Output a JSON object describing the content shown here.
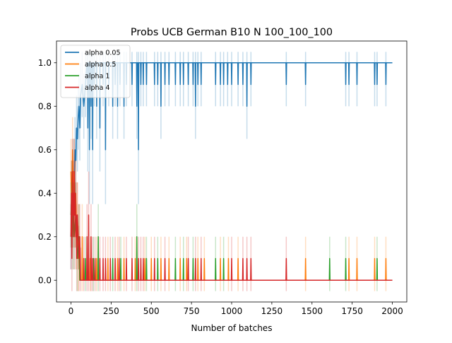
{
  "chart_data": {
    "type": "line",
    "title": "Probs UCB German B10 N 100_100_100",
    "xlabel": "Number of batches",
    "ylabel": "",
    "xlim": [
      -90,
      2090
    ],
    "ylim": [
      -0.1,
      1.1
    ],
    "xticks": [
      0,
      250,
      500,
      750,
      1000,
      1250,
      1500,
      1750,
      2000
    ],
    "xtick_labels": [
      "0",
      "250",
      "500",
      "750",
      "1000",
      "1250",
      "1500",
      "1750",
      "2000"
    ],
    "yticks": [
      0.0,
      0.2,
      0.4,
      0.6,
      0.8,
      1.0
    ],
    "ytick_labels": [
      "0.0",
      "0.2",
      "0.4",
      "0.6",
      "0.8",
      "1.0"
    ],
    "grid": false,
    "legend_position": "upper-left",
    "series": [
      {
        "name": "alpha 0.05",
        "color": "#1f77b4",
        "baseline": 1.0,
        "early_values": [
          {
            "x": 0,
            "y": 0.2
          },
          {
            "x": 5,
            "y": 0.3
          },
          {
            "x": 10,
            "y": 0.4
          },
          {
            "x": 15,
            "y": 0.5
          },
          {
            "x": 20,
            "y": 0.45
          },
          {
            "x": 25,
            "y": 0.6
          },
          {
            "x": 30,
            "y": 0.55
          },
          {
            "x": 35,
            "y": 0.7
          },
          {
            "x": 40,
            "y": 0.65
          },
          {
            "x": 45,
            "y": 0.75
          },
          {
            "x": 50,
            "y": 0.8
          },
          {
            "x": 55,
            "y": 0.7
          },
          {
            "x": 60,
            "y": 0.85
          },
          {
            "x": 70,
            "y": 0.9
          },
          {
            "x": 80,
            "y": 0.8
          },
          {
            "x": 90,
            "y": 0.9
          },
          {
            "x": 100,
            "y": 1.0
          }
        ],
        "dips": [
          {
            "x": 105,
            "y": 0.7
          },
          {
            "x": 115,
            "y": 0.6
          },
          {
            "x": 125,
            "y": 0.8
          },
          {
            "x": 135,
            "y": 0.6
          },
          {
            "x": 145,
            "y": 0.9
          },
          {
            "x": 160,
            "y": 0.8
          },
          {
            "x": 180,
            "y": 0.7
          },
          {
            "x": 200,
            "y": 0.9
          },
          {
            "x": 215,
            "y": 0.6
          },
          {
            "x": 235,
            "y": 0.9
          },
          {
            "x": 260,
            "y": 0.8
          },
          {
            "x": 275,
            "y": 0.9
          },
          {
            "x": 290,
            "y": 0.8
          },
          {
            "x": 305,
            "y": 0.9
          },
          {
            "x": 330,
            "y": 0.8
          },
          {
            "x": 345,
            "y": 0.9
          },
          {
            "x": 380,
            "y": 0.9
          },
          {
            "x": 410,
            "y": 0.8
          },
          {
            "x": 420,
            "y": 0.6
          },
          {
            "x": 435,
            "y": 0.9
          },
          {
            "x": 450,
            "y": 0.9
          },
          {
            "x": 470,
            "y": 0.9
          },
          {
            "x": 520,
            "y": 0.9
          },
          {
            "x": 540,
            "y": 0.9
          },
          {
            "x": 560,
            "y": 0.8
          },
          {
            "x": 585,
            "y": 0.9
          },
          {
            "x": 610,
            "y": 0.9
          },
          {
            "x": 650,
            "y": 0.9
          },
          {
            "x": 680,
            "y": 0.9
          },
          {
            "x": 700,
            "y": 0.9
          },
          {
            "x": 730,
            "y": 0.9
          },
          {
            "x": 760,
            "y": 0.9
          },
          {
            "x": 775,
            "y": 0.8
          },
          {
            "x": 790,
            "y": 0.9
          },
          {
            "x": 810,
            "y": 0.9
          },
          {
            "x": 900,
            "y": 0.9
          },
          {
            "x": 930,
            "y": 0.9
          },
          {
            "x": 950,
            "y": 0.9
          },
          {
            "x": 975,
            "y": 0.9
          },
          {
            "x": 1000,
            "y": 0.9
          },
          {
            "x": 1040,
            "y": 0.9
          },
          {
            "x": 1070,
            "y": 0.9
          },
          {
            "x": 1095,
            "y": 0.8
          },
          {
            "x": 1120,
            "y": 0.9
          },
          {
            "x": 1340,
            "y": 0.9
          },
          {
            "x": 1460,
            "y": 0.9
          },
          {
            "x": 1710,
            "y": 0.9
          },
          {
            "x": 1730,
            "y": 0.9
          },
          {
            "x": 1780,
            "y": 0.9
          },
          {
            "x": 1890,
            "y": 0.9
          },
          {
            "x": 1905,
            "y": 0.9
          },
          {
            "x": 1960,
            "y": 0.9
          }
        ]
      },
      {
        "name": "alpha 0.5",
        "color": "#ff7f0e",
        "baseline": 0.0,
        "early_values": [
          {
            "x": 0,
            "y": 0.5
          },
          {
            "x": 5,
            "y": 0.3
          },
          {
            "x": 10,
            "y": 0.6
          },
          {
            "x": 15,
            "y": 0.4
          },
          {
            "x": 20,
            "y": 0.5
          },
          {
            "x": 25,
            "y": 0.3
          },
          {
            "x": 30,
            "y": 0.4
          },
          {
            "x": 35,
            "y": 0.2
          },
          {
            "x": 40,
            "y": 0.3
          },
          {
            "x": 45,
            "y": 0.1
          },
          {
            "x": 50,
            "y": 0.2
          }
        ],
        "spikes": [
          {
            "x": 70,
            "y": 0.2
          },
          {
            "x": 120,
            "y": 0.1
          },
          {
            "x": 160,
            "y": 0.1
          },
          {
            "x": 230,
            "y": 0.1
          },
          {
            "x": 290,
            "y": 0.1
          },
          {
            "x": 330,
            "y": 0.1
          },
          {
            "x": 400,
            "y": 0.1
          },
          {
            "x": 460,
            "y": 0.1
          },
          {
            "x": 500,
            "y": 0.1
          },
          {
            "x": 560,
            "y": 0.1
          },
          {
            "x": 610,
            "y": 0.1
          },
          {
            "x": 680,
            "y": 0.1
          },
          {
            "x": 720,
            "y": 0.1
          },
          {
            "x": 790,
            "y": 0.1
          },
          {
            "x": 830,
            "y": 0.1
          },
          {
            "x": 930,
            "y": 0.1
          },
          {
            "x": 980,
            "y": 0.1
          },
          {
            "x": 1040,
            "y": 0.1
          },
          {
            "x": 1460,
            "y": 0.1
          },
          {
            "x": 1730,
            "y": 0.1
          },
          {
            "x": 1780,
            "y": 0.1
          },
          {
            "x": 1890,
            "y": 0.1
          },
          {
            "x": 1960,
            "y": 0.1
          }
        ]
      },
      {
        "name": "alpha 1",
        "color": "#2ca02c",
        "baseline": 0.0,
        "early_values": [
          {
            "x": 0,
            "y": 0.3
          },
          {
            "x": 5,
            "y": 0.4
          },
          {
            "x": 10,
            "y": 0.2
          },
          {
            "x": 15,
            "y": 0.3
          },
          {
            "x": 20,
            "y": 0.2
          },
          {
            "x": 30,
            "y": 0.3
          },
          {
            "x": 40,
            "y": 0.1
          },
          {
            "x": 50,
            "y": 0.2
          }
        ],
        "spikes": [
          {
            "x": 90,
            "y": 0.1
          },
          {
            "x": 140,
            "y": 0.1
          },
          {
            "x": 170,
            "y": 0.2
          },
          {
            "x": 260,
            "y": 0.1
          },
          {
            "x": 310,
            "y": 0.1
          },
          {
            "x": 410,
            "y": 0.2
          },
          {
            "x": 470,
            "y": 0.1
          },
          {
            "x": 540,
            "y": 0.1
          },
          {
            "x": 650,
            "y": 0.1
          },
          {
            "x": 700,
            "y": 0.1
          },
          {
            "x": 760,
            "y": 0.1
          },
          {
            "x": 900,
            "y": 0.1
          },
          {
            "x": 950,
            "y": 0.1
          },
          {
            "x": 1610,
            "y": 0.1
          },
          {
            "x": 1710,
            "y": 0.1
          },
          {
            "x": 1905,
            "y": 0.1
          }
        ]
      },
      {
        "name": "alpha 4",
        "color": "#d62728",
        "baseline": 0.0,
        "early_values": [
          {
            "x": 0,
            "y": 0.2
          },
          {
            "x": 3,
            "y": 0.4
          },
          {
            "x": 6,
            "y": 0.1
          },
          {
            "x": 9,
            "y": 0.5
          },
          {
            "x": 12,
            "y": 0.3
          },
          {
            "x": 15,
            "y": 0.4
          },
          {
            "x": 18,
            "y": 0.2
          },
          {
            "x": 21,
            "y": 0.5
          },
          {
            "x": 24,
            "y": 0.3
          },
          {
            "x": 27,
            "y": 0.4
          },
          {
            "x": 30,
            "y": 0.2
          },
          {
            "x": 33,
            "y": 0.3
          },
          {
            "x": 36,
            "y": 0.1
          },
          {
            "x": 40,
            "y": 0.3
          },
          {
            "x": 45,
            "y": 0.2
          },
          {
            "x": 50,
            "y": 0.1
          },
          {
            "x": 55,
            "y": 0.2
          },
          {
            "x": 60,
            "y": 0.0
          }
        ],
        "spikes": [
          {
            "x": 80,
            "y": 0.1
          },
          {
            "x": 100,
            "y": 0.2
          },
          {
            "x": 110,
            "y": 0.3
          },
          {
            "x": 125,
            "y": 0.2
          },
          {
            "x": 135,
            "y": 0.1
          },
          {
            "x": 150,
            "y": 0.1
          },
          {
            "x": 180,
            "y": 0.1
          },
          {
            "x": 200,
            "y": 0.1
          },
          {
            "x": 215,
            "y": 0.1
          },
          {
            "x": 245,
            "y": 0.1
          },
          {
            "x": 275,
            "y": 0.1
          },
          {
            "x": 300,
            "y": 0.1
          },
          {
            "x": 345,
            "y": 0.1
          },
          {
            "x": 380,
            "y": 0.1
          },
          {
            "x": 420,
            "y": 0.1
          },
          {
            "x": 435,
            "y": 0.1
          },
          {
            "x": 450,
            "y": 0.1
          },
          {
            "x": 520,
            "y": 0.1
          },
          {
            "x": 585,
            "y": 0.1
          },
          {
            "x": 730,
            "y": 0.1
          },
          {
            "x": 775,
            "y": 0.1
          },
          {
            "x": 810,
            "y": 0.1
          },
          {
            "x": 1000,
            "y": 0.1
          },
          {
            "x": 1070,
            "y": 0.1
          },
          {
            "x": 1095,
            "y": 0.1
          },
          {
            "x": 1120,
            "y": 0.1
          },
          {
            "x": 1340,
            "y": 0.1
          }
        ]
      }
    ]
  }
}
